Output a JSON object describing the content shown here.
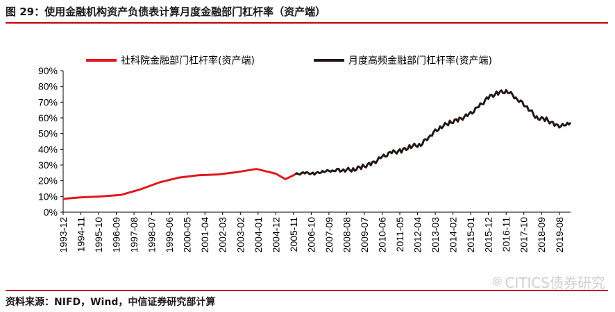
{
  "figure": {
    "title": "图 29：使用金融机构资产负债表计算月度金融部门杠杆率（资产端）",
    "source": "资料来源：NIFD，Wind，中信证券研究部计算",
    "watermark": "CITICS债券研究",
    "watermark_icon": "wechat-icon"
  },
  "colors": {
    "accent_red": "#c00000",
    "series_red": "#e0191e",
    "series_black": "#231815"
  },
  "chart_data": {
    "type": "line",
    "ylim": [
      0,
      90
    ],
    "y_ticks": [
      "0%",
      "10%",
      "20%",
      "30%",
      "40%",
      "50%",
      "60%",
      "70%",
      "80%",
      "90%"
    ],
    "x_ticks": [
      "1993-12",
      "1994-11",
      "1995-10",
      "1996-09",
      "1997-08",
      "1998-07",
      "1999-06",
      "2000-05",
      "2001-04",
      "2002-03",
      "2003-02",
      "2004-01",
      "2004-12",
      "2005-11",
      "2006-10",
      "2007-09",
      "2008-08",
      "2009-07",
      "2010-06",
      "2011-05",
      "2012-04",
      "2013-03",
      "2014-02",
      "2015-01",
      "2015-12",
      "2016-11",
      "2017-10",
      "2018-09",
      "2019-08"
    ],
    "legend_position": "top",
    "grid": false,
    "series": [
      {
        "name": "社科院金融部门杠杆率(资产端)",
        "color": "#e0191e",
        "x": [
          "1993-12",
          "1994-12",
          "1995-12",
          "1996-12",
          "1997-12",
          "1998-12",
          "1999-12",
          "2000-12",
          "2001-12",
          "2002-12",
          "2003-12",
          "2004-12",
          "2005-06",
          "2005-12"
        ],
        "y": [
          8.5,
          9.5,
          10,
          11,
          14.5,
          19,
          22,
          23.5,
          24,
          25.5,
          27.5,
          24.5,
          21,
          24
        ]
      },
      {
        "name": "月度高频金融部门杠杆率(资产端)",
        "color": "#231815",
        "x": [
          "2005-12",
          "2006-06",
          "2006-12",
          "2007-06",
          "2007-12",
          "2008-06",
          "2008-12",
          "2009-06",
          "2009-12",
          "2010-06",
          "2010-12",
          "2011-06",
          "2011-12",
          "2012-06",
          "2012-12",
          "2013-06",
          "2013-12",
          "2014-06",
          "2014-12",
          "2015-06",
          "2015-12",
          "2016-06",
          "2016-12",
          "2017-06",
          "2017-12",
          "2018-06",
          "2018-12",
          "2019-06",
          "2019-12",
          "2020-03"
        ],
        "y": [
          24,
          25,
          24.5,
          26,
          26.5,
          27,
          27,
          29,
          31,
          35,
          38,
          39,
          42,
          43,
          49,
          54,
          57,
          59,
          62,
          67,
          73,
          76,
          77,
          72,
          67,
          60,
          59,
          55,
          55,
          57
        ]
      }
    ]
  }
}
